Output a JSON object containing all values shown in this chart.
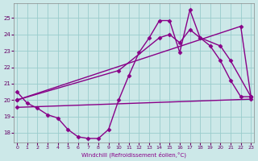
{
  "bg_color": "#cce8e8",
  "line_color": "#880088",
  "grid_color": "#99cccc",
  "xlabel": "Windchill (Refroidissement éolien,°C)",
  "ylabel_ticks": [
    18,
    19,
    20,
    21,
    22,
    23,
    24,
    25
  ],
  "xlim": [
    -0.3,
    23.3
  ],
  "ylim": [
    17.4,
    25.9
  ],
  "x_ticks": [
    0,
    1,
    2,
    3,
    4,
    5,
    6,
    7,
    8,
    9,
    10,
    11,
    12,
    13,
    14,
    15,
    16,
    17,
    18,
    19,
    20,
    21,
    22,
    23
  ],
  "line1_x": [
    0,
    1,
    2,
    3,
    4,
    5,
    6,
    7,
    8,
    9,
    10,
    11,
    12,
    13,
    14,
    15,
    16,
    17,
    18,
    19,
    20,
    21,
    22,
    23
  ],
  "line1_y": [
    20.5,
    19.8,
    19.5,
    19.1,
    18.9,
    18.2,
    17.75,
    17.65,
    17.65,
    18.2,
    20.0,
    21.5,
    22.9,
    23.8,
    24.85,
    24.85,
    22.9,
    25.5,
    23.8,
    23.3,
    22.4,
    21.2,
    20.2,
    20.2
  ],
  "line2_x": [
    0,
    10,
    14,
    15,
    16,
    17,
    18,
    20,
    21,
    23
  ],
  "line2_y": [
    20.0,
    21.8,
    23.8,
    24.0,
    23.5,
    24.3,
    23.8,
    23.3,
    22.4,
    20.2
  ],
  "line3_x": [
    0,
    22,
    23
  ],
  "line3_y": [
    20.0,
    24.5,
    20.2
  ],
  "line4_x": [
    0,
    23
  ],
  "line4_y": [
    19.55,
    20.05
  ],
  "marker": "D",
  "marker_size": 2.5,
  "linewidth": 1.0
}
